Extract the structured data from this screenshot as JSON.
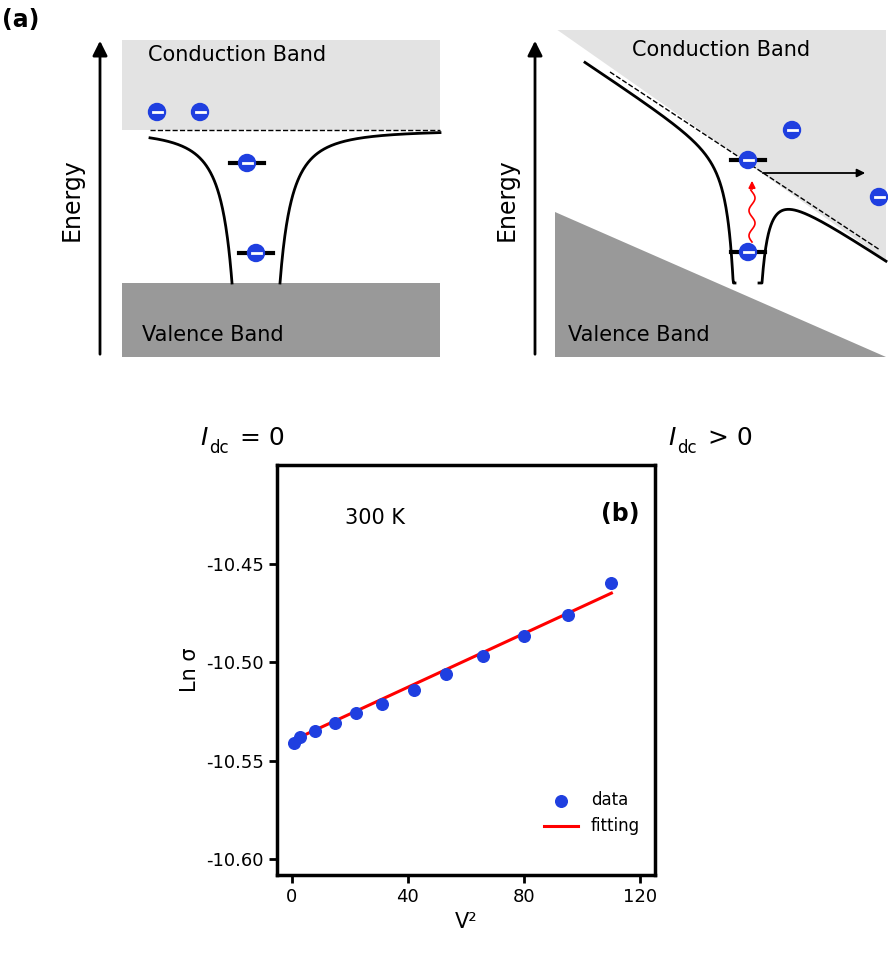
{
  "diagram": {
    "label": "(a)",
    "panels": [
      {
        "y_label": "Energy",
        "top_band": "Conduction Band",
        "bottom_band": "Valence Band",
        "caption": {
          "symbol": "I",
          "subscript": "dc",
          "relation": "= 0"
        }
      },
      {
        "y_label": "Energy",
        "top_band": "Conduction Band",
        "bottom_band": "Valence Band",
        "caption": {
          "symbol": "I",
          "subscript": "dc",
          "relation": "> 0"
        }
      }
    ]
  },
  "chart_data": {
    "type": "scatter",
    "label": "(b)",
    "annotation": "300 K",
    "x_label": "V²",
    "y_label": "Ln σ",
    "series": [
      {
        "name": "data",
        "type": "scatter",
        "color": "#1f3fe0",
        "marker": "o",
        "x": [
          1,
          3,
          8,
          15,
          22,
          31,
          42,
          53,
          66,
          80,
          95,
          110
        ],
        "values": [
          -10.541,
          -10.538,
          -10.535,
          -10.531,
          -10.526,
          -10.521,
          -10.514,
          -10.506,
          -10.497,
          -10.487,
          -10.476,
          -10.46
        ]
      },
      {
        "name": "fitting",
        "type": "line",
        "color": "#ff0000",
        "line_style": "solid",
        "x": [
          0,
          110
        ],
        "values": [
          -10.54,
          -10.465
        ]
      }
    ],
    "xlim": [
      -5,
      125
    ],
    "ylim": [
      -10.608,
      -10.4
    ],
    "xticks": [
      0,
      40,
      80,
      120
    ],
    "yticks": [
      {
        "value": -10.6,
        "label": "-10.60"
      },
      -10.55,
      {
        "value": -10.5,
        "label": "-10.50"
      },
      -10.45
    ],
    "legend": "lower right"
  }
}
